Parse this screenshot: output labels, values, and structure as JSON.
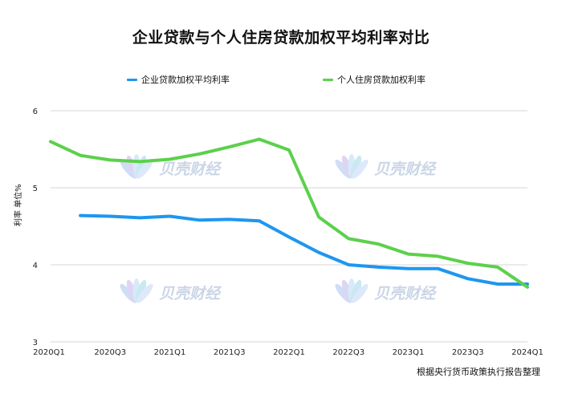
{
  "chart_data": {
    "type": "line",
    "title": "企业贷款与个人住房贷款加权平均利率对比",
    "ylabel": "利率 单位%",
    "source_note": "根据央行货币政策执行报告整理",
    "ylim": [
      3,
      6
    ],
    "yticks": [
      "3",
      "4",
      "5",
      "6"
    ],
    "x": [
      "2020Q1",
      "2020Q2",
      "2020Q3",
      "2020Q4",
      "2021Q1",
      "2021Q2",
      "2021Q3",
      "2021Q4",
      "2022Q1",
      "2022Q2",
      "2022Q3",
      "2022Q4",
      "2023Q1",
      "2023Q2",
      "2023Q3",
      "2023Q4",
      "2024Q1"
    ],
    "xticks": [
      "2020Q1",
      "2020Q3",
      "2021Q1",
      "2021Q3",
      "2022Q1",
      "2022Q3",
      "2023Q1",
      "2023Q3",
      "2024Q1"
    ],
    "grid": true,
    "legend_position": "top",
    "series": [
      {
        "name": "企业贷款加权平均利率",
        "color": "#1e96f0",
        "values": [
          null,
          4.64,
          4.63,
          4.61,
          4.63,
          4.58,
          4.59,
          4.57,
          4.36,
          4.16,
          4.0,
          3.97,
          3.95,
          3.95,
          3.82,
          3.75,
          3.75
        ]
      },
      {
        "name": "个人住房贷款加权利率",
        "color": "#5cd04c",
        "values": [
          5.6,
          5.42,
          5.36,
          5.34,
          5.37,
          5.44,
          5.53,
          5.63,
          5.49,
          4.62,
          4.34,
          4.27,
          4.14,
          4.11,
          4.02,
          3.97,
          3.71
        ]
      }
    ]
  },
  "watermark": {
    "text": "贝壳财经"
  }
}
